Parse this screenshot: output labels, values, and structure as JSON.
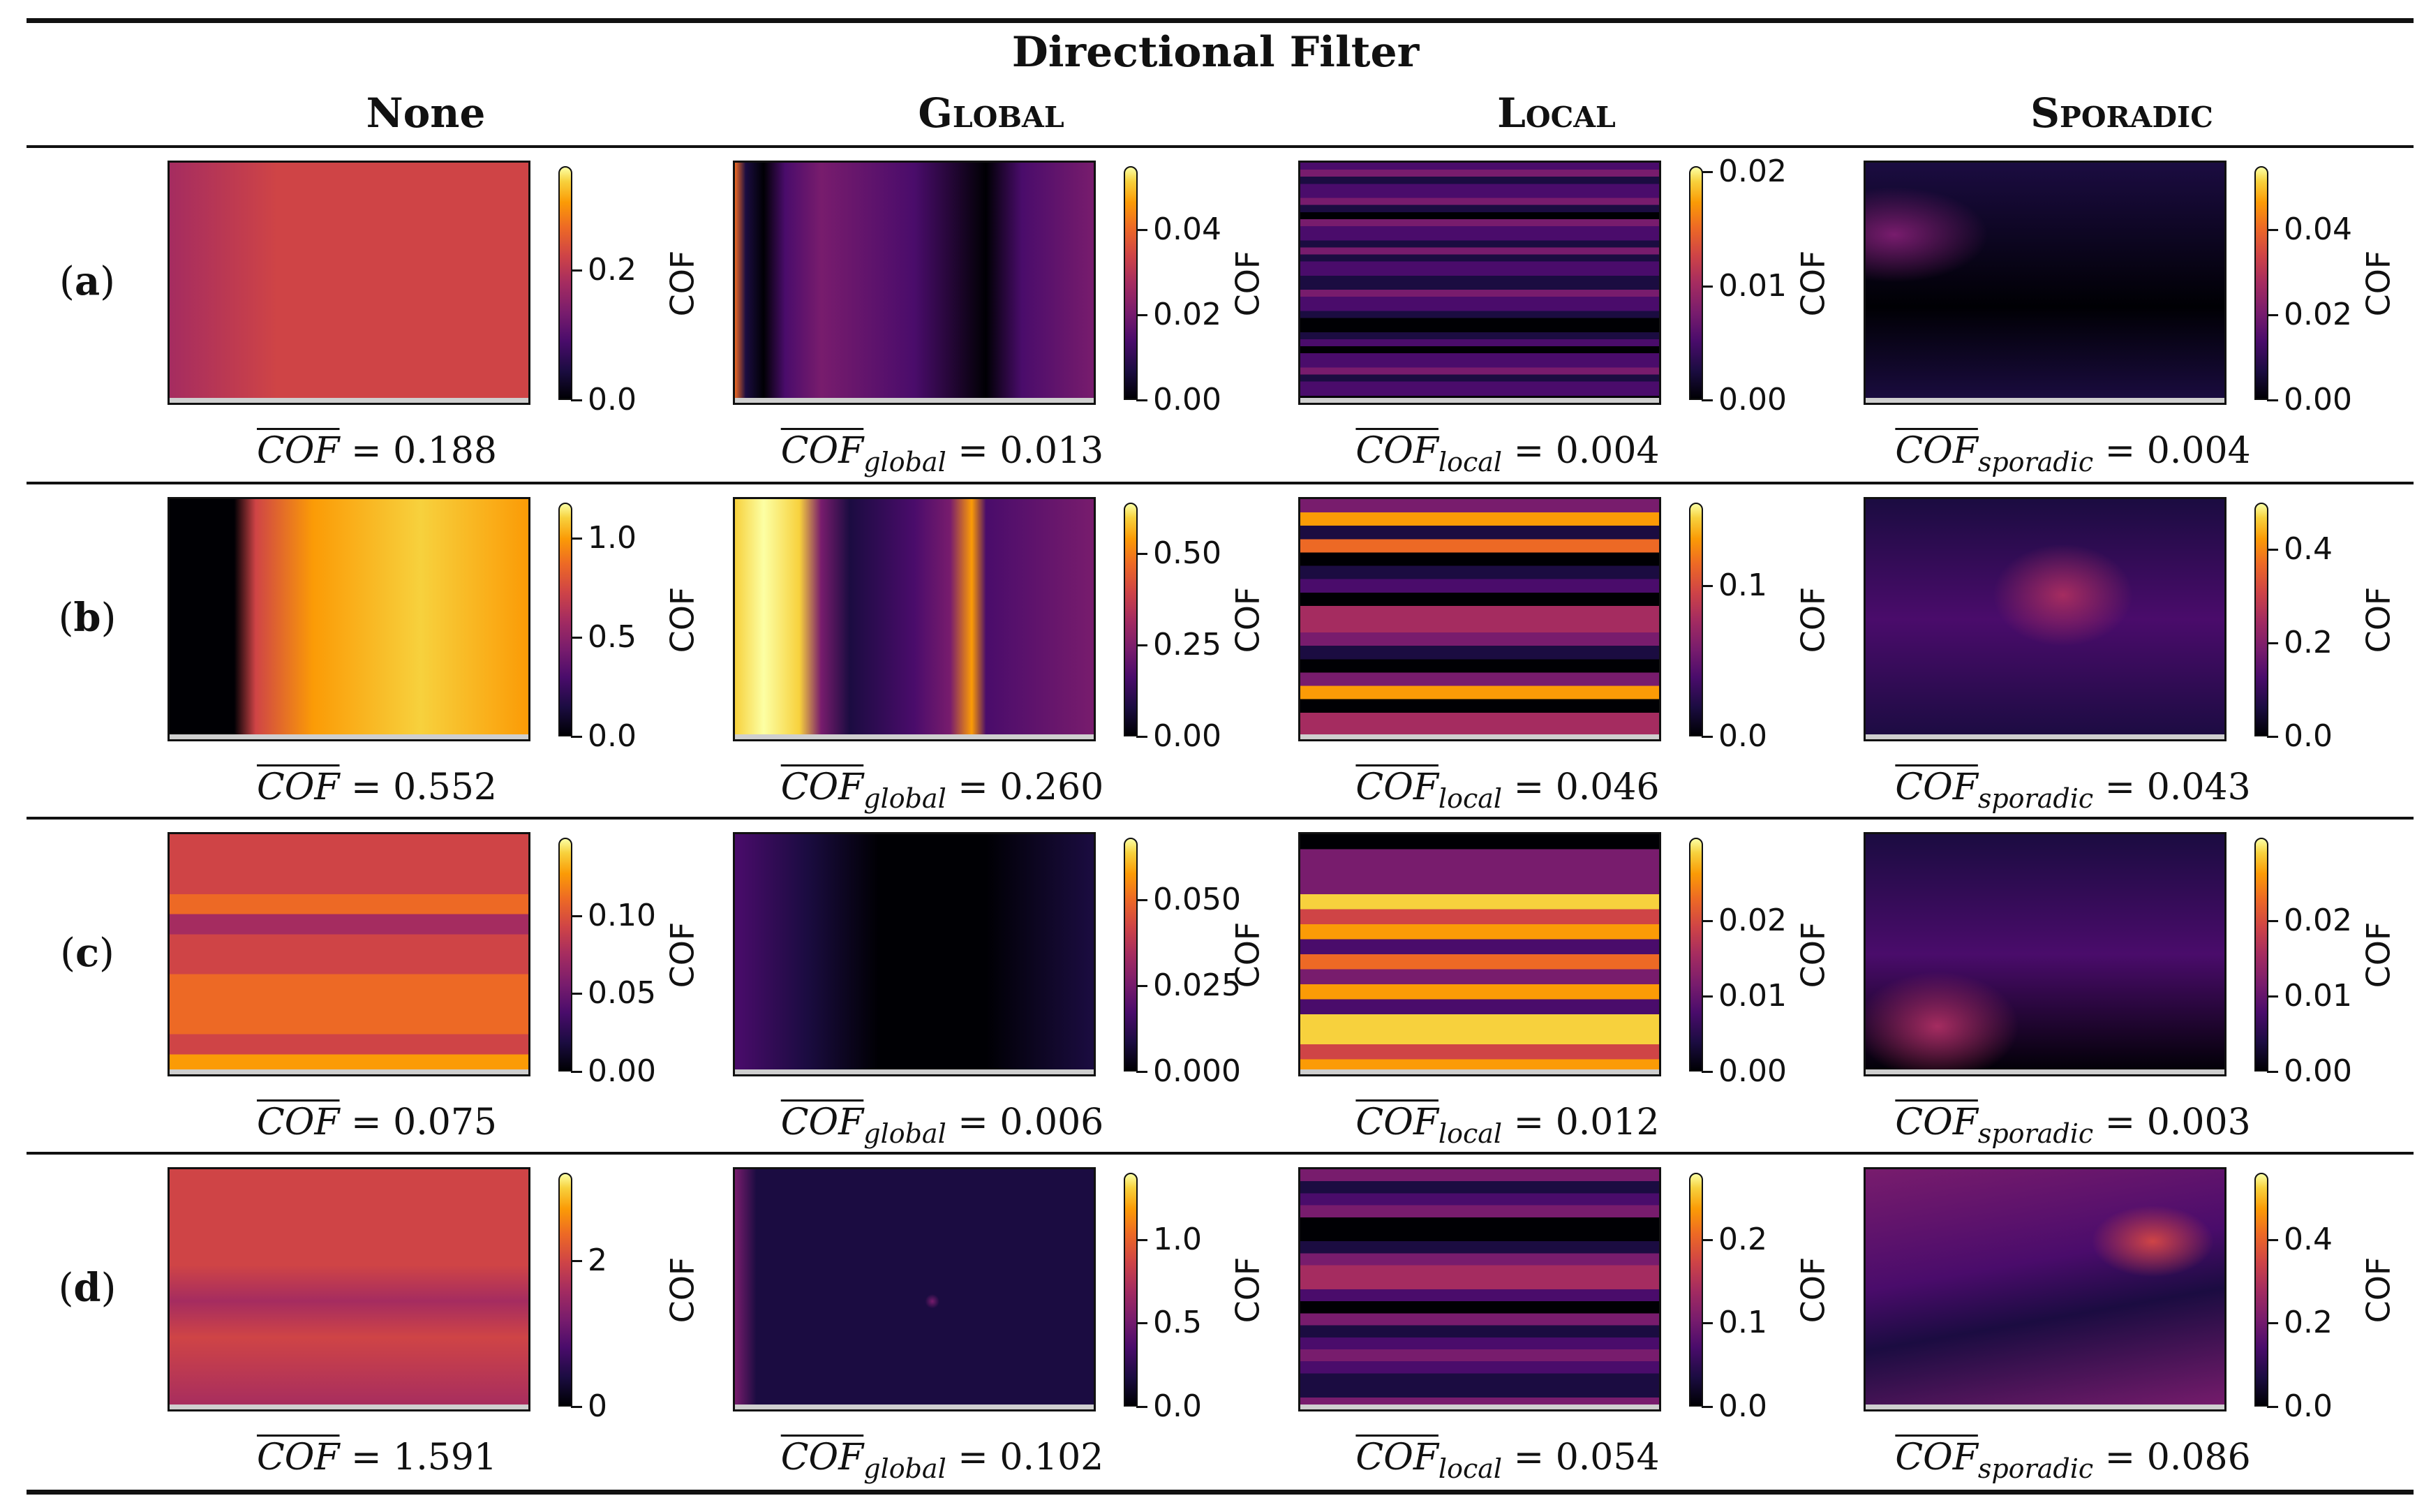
{
  "header": {
    "super_title": "Directional Filter",
    "columns": [
      {
        "label": "None",
        "small_caps": false
      },
      {
        "label": "Global",
        "small_caps": true
      },
      {
        "label": "Local",
        "small_caps": true
      },
      {
        "label": "Sporadic",
        "small_caps": true
      }
    ]
  },
  "colorbar_title": "COF",
  "colormap": [
    "#000004",
    "#1b0c41",
    "#4a0c6b",
    "#781c6d",
    "#a52c60",
    "#cf4446",
    "#ed6925",
    "#fb9b06",
    "#f7d13d",
    "#fcffa4"
  ],
  "metric_symbol": "COF",
  "equals": "=",
  "rows": [
    {
      "label": "a",
      "panels": [
        {
          "sub": "",
          "value": "0.188",
          "cbar_max": 0.36,
          "ticks": [
            {
              "v": 0.0,
              "t": "0.0"
            },
            {
              "v": 0.2,
              "t": "0.2"
            }
          ],
          "style": "none_a"
        },
        {
          "sub": "global",
          "value": "0.013",
          "cbar_max": 0.055,
          "ticks": [
            {
              "v": 0.0,
              "t": "0.00"
            },
            {
              "v": 0.02,
              "t": "0.02"
            },
            {
              "v": 0.04,
              "t": "0.04"
            }
          ],
          "style": "global_a"
        },
        {
          "sub": "local",
          "value": "0.004",
          "cbar_max": 0.0205,
          "ticks": [
            {
              "v": 0.0,
              "t": "0.00"
            },
            {
              "v": 0.01,
              "t": "0.01"
            },
            {
              "v": 0.02,
              "t": "0.02"
            }
          ],
          "style": "local_a"
        },
        {
          "sub": "sporadic",
          "value": "0.004",
          "cbar_max": 0.055,
          "ticks": [
            {
              "v": 0.0,
              "t": "0.00"
            },
            {
              "v": 0.02,
              "t": "0.02"
            },
            {
              "v": 0.04,
              "t": "0.04"
            }
          ],
          "style": "sporadic_a"
        }
      ]
    },
    {
      "label": "b",
      "panels": [
        {
          "sub": "",
          "value": "0.552",
          "cbar_max": 1.18,
          "ticks": [
            {
              "v": 0.0,
              "t": "0.0"
            },
            {
              "v": 0.5,
              "t": "0.5"
            },
            {
              "v": 1.0,
              "t": "1.0"
            }
          ],
          "style": "none_b"
        },
        {
          "sub": "global",
          "value": "0.260",
          "cbar_max": 0.64,
          "ticks": [
            {
              "v": 0.0,
              "t": "0.00"
            },
            {
              "v": 0.25,
              "t": "0.25"
            },
            {
              "v": 0.5,
              "t": "0.50"
            }
          ],
          "style": "global_b"
        },
        {
          "sub": "local",
          "value": "0.046",
          "cbar_max": 0.155,
          "ticks": [
            {
              "v": 0.0,
              "t": "0.0"
            },
            {
              "v": 0.1,
              "t": "0.1"
            }
          ],
          "style": "local_b"
        },
        {
          "sub": "sporadic",
          "value": "0.043",
          "cbar_max": 0.5,
          "ticks": [
            {
              "v": 0.0,
              "t": "0.0"
            },
            {
              "v": 0.2,
              "t": "0.2"
            },
            {
              "v": 0.4,
              "t": "0.4"
            }
          ],
          "style": "sporadic_b"
        }
      ]
    },
    {
      "label": "c",
      "panels": [
        {
          "sub": "",
          "value": "0.075",
          "cbar_max": 0.15,
          "ticks": [
            {
              "v": 0.0,
              "t": "0.00"
            },
            {
              "v": 0.05,
              "t": "0.05"
            },
            {
              "v": 0.1,
              "t": "0.10"
            }
          ],
          "style": "none_c"
        },
        {
          "sub": "global",
          "value": "0.006",
          "cbar_max": 0.068,
          "ticks": [
            {
              "v": 0.0,
              "t": "0.000"
            },
            {
              "v": 0.025,
              "t": "0.025"
            },
            {
              "v": 0.05,
              "t": "0.050"
            }
          ],
          "style": "global_c"
        },
        {
          "sub": "local",
          "value": "0.012",
          "cbar_max": 0.031,
          "ticks": [
            {
              "v": 0.0,
              "t": "0.00"
            },
            {
              "v": 0.01,
              "t": "0.01"
            },
            {
              "v": 0.02,
              "t": "0.02"
            }
          ],
          "style": "local_c"
        },
        {
          "sub": "sporadic",
          "value": "0.003",
          "cbar_max": 0.031,
          "ticks": [
            {
              "v": 0.0,
              "t": "0.00"
            },
            {
              "v": 0.01,
              "t": "0.01"
            },
            {
              "v": 0.02,
              "t": "0.02"
            }
          ],
          "style": "sporadic_c"
        }
      ]
    },
    {
      "label": "d",
      "panels": [
        {
          "sub": "",
          "value": "1.591",
          "cbar_max": 3.2,
          "ticks": [
            {
              "v": 0,
              "t": "0"
            },
            {
              "v": 2,
              "t": "2"
            }
          ],
          "style": "none_d"
        },
        {
          "sub": "global",
          "value": "0.102",
          "cbar_max": 1.4,
          "ticks": [
            {
              "v": 0.0,
              "t": "0.0"
            },
            {
              "v": 0.5,
              "t": "0.5"
            },
            {
              "v": 1.0,
              "t": "1.0"
            }
          ],
          "style": "global_d"
        },
        {
          "sub": "local",
          "value": "0.054",
          "cbar_max": 0.28,
          "ticks": [
            {
              "v": 0.0,
              "t": "0.0"
            },
            {
              "v": 0.1,
              "t": "0.1"
            },
            {
              "v": 0.2,
              "t": "0.2"
            }
          ],
          "style": "local_d"
        },
        {
          "sub": "sporadic",
          "value": "0.086",
          "cbar_max": 0.56,
          "ticks": [
            {
              "v": 0.0,
              "t": "0.0"
            },
            {
              "v": 0.2,
              "t": "0.2"
            },
            {
              "v": 0.4,
              "t": "0.4"
            }
          ],
          "style": "sporadic_d"
        }
      ]
    }
  ]
}
